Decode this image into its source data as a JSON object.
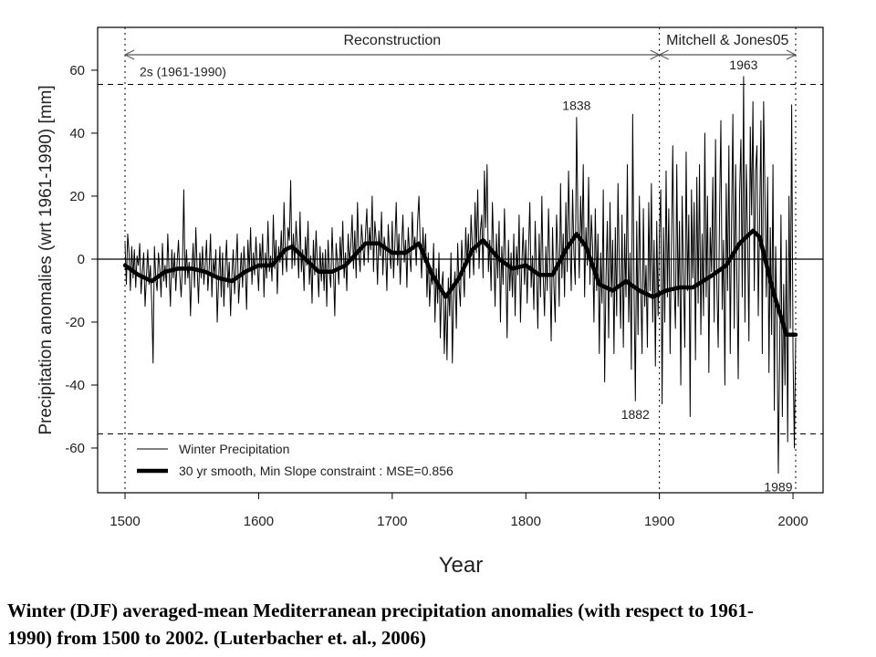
{
  "chart_data": {
    "type": "line",
    "xlabel": "Year",
    "ylabel": "Precipitation anomalies (wrt 1961-1990) [mm]",
    "xlim": [
      1479.5,
      2022.5
    ],
    "ylim": [
      -74.2,
      73.6
    ],
    "xticks": [
      1500,
      1600,
      1700,
      1800,
      1900,
      2000
    ],
    "yticks": [
      -60,
      -40,
      -20,
      0,
      20,
      40,
      60
    ],
    "zero_line": 0,
    "thresholds": {
      "label": "2s (1961-1990)",
      "values": [
        55.5,
        -55.5
      ]
    },
    "periods": [
      {
        "label": "Reconstruction",
        "start": 1500,
        "end": 1900
      },
      {
        "label": "Mitchell & Jones05",
        "start": 1900,
        "end": 2002
      }
    ],
    "annotations": [
      {
        "text": "1838",
        "x": 1838,
        "y": 45
      },
      {
        "text": "1963",
        "x": 1963,
        "y": 58
      },
      {
        "text": "1882",
        "x": 1882,
        "y": -45
      },
      {
        "text": "1989",
        "x": 1989,
        "y": -68
      }
    ],
    "series": [
      {
        "name": "Winter Precipitation",
        "color": "#000000",
        "width": 1,
        "x": [
          1500,
          1501,
          1502,
          1503,
          1504,
          1505,
          1506,
          1507,
          1508,
          1509,
          1510,
          1511,
          1512,
          1513,
          1514,
          1515,
          1516,
          1517,
          1518,
          1519,
          1520,
          1521,
          1522,
          1523,
          1524,
          1525,
          1526,
          1527,
          1528,
          1529,
          1530,
          1531,
          1532,
          1533,
          1534,
          1535,
          1536,
          1537,
          1538,
          1539,
          1540,
          1541,
          1542,
          1543,
          1544,
          1545,
          1546,
          1547,
          1548,
          1549,
          1550,
          1551,
          1552,
          1553,
          1554,
          1555,
          1556,
          1557,
          1558,
          1559,
          1560,
          1561,
          1562,
          1563,
          1564,
          1565,
          1566,
          1567,
          1568,
          1569,
          1570,
          1571,
          1572,
          1573,
          1574,
          1575,
          1576,
          1577,
          1578,
          1579,
          1580,
          1581,
          1582,
          1583,
          1584,
          1585,
          1586,
          1587,
          1588,
          1589,
          1590,
          1591,
          1592,
          1593,
          1594,
          1595,
          1596,
          1597,
          1598,
          1599,
          1600,
          1601,
          1602,
          1603,
          1604,
          1605,
          1606,
          1607,
          1608,
          1609,
          1610,
          1611,
          1612,
          1613,
          1614,
          1615,
          1616,
          1617,
          1618,
          1619,
          1620,
          1621,
          1622,
          1623,
          1624,
          1625,
          1626,
          1627,
          1628,
          1629,
          1630,
          1631,
          1632,
          1633,
          1634,
          1635,
          1636,
          1637,
          1638,
          1639,
          1640,
          1641,
          1642,
          1643,
          1644,
          1645,
          1646,
          1647,
          1648,
          1649,
          1650,
          1651,
          1652,
          1653,
          1654,
          1655,
          1656,
          1657,
          1658,
          1659,
          1660,
          1661,
          1662,
          1663,
          1664,
          1665,
          1666,
          1667,
          1668,
          1669,
          1670,
          1671,
          1672,
          1673,
          1674,
          1675,
          1676,
          1677,
          1678,
          1679,
          1680,
          1681,
          1682,
          1683,
          1684,
          1685,
          1686,
          1687,
          1688,
          1689,
          1690,
          1691,
          1692,
          1693,
          1694,
          1695,
          1696,
          1697,
          1698,
          1699,
          1700,
          1701,
          1702,
          1703,
          1704,
          1705,
          1706,
          1707,
          1708,
          1709,
          1710,
          1711,
          1712,
          1713,
          1714,
          1715,
          1716,
          1717,
          1718,
          1719,
          1720,
          1721,
          1722,
          1723,
          1724,
          1725,
          1726,
          1727,
          1728,
          1729,
          1730,
          1731,
          1732,
          1733,
          1734,
          1735,
          1736,
          1737,
          1738,
          1739,
          1740,
          1741,
          1742,
          1743,
          1744,
          1745,
          1746,
          1747,
          1748,
          1749,
          1750,
          1751,
          1752,
          1753,
          1754,
          1755,
          1756,
          1757,
          1758,
          1759,
          1760,
          1761,
          1762,
          1763,
          1764,
          1765,
          1766,
          1767,
          1768,
          1769,
          1770,
          1771,
          1772,
          1773,
          1774,
          1775,
          1776,
          1777,
          1778,
          1779,
          1780,
          1781,
          1782,
          1783,
          1784,
          1785,
          1786,
          1787,
          1788,
          1789,
          1790,
          1791,
          1792,
          1793,
          1794,
          1795,
          1796,
          1797,
          1798,
          1799,
          1800,
          1801,
          1802,
          1803,
          1804,
          1805,
          1806,
          1807,
          1808,
          1809,
          1810,
          1811,
          1812,
          1813,
          1814,
          1815,
          1816,
          1817,
          1818,
          1819,
          1820,
          1821,
          1822,
          1823,
          1824,
          1825,
          1826,
          1827,
          1828,
          1829,
          1830,
          1831,
          1832,
          1833,
          1834,
          1835,
          1836,
          1837,
          1838,
          1839,
          1840,
          1841,
          1842,
          1843,
          1844,
          1845,
          1846,
          1847,
          1848,
          1849,
          1850,
          1851,
          1852,
          1853,
          1854,
          1855,
          1856,
          1857,
          1858,
          1859,
          1860,
          1861,
          1862,
          1863,
          1864,
          1865,
          1866,
          1867,
          1868,
          1869,
          1870,
          1871,
          1872,
          1873,
          1874,
          1875,
          1876,
          1877,
          1878,
          1879,
          1880,
          1881,
          1882,
          1883,
          1884,
          1885,
          1886,
          1887,
          1888,
          1889,
          1890,
          1891,
          1892,
          1893,
          1894,
          1895,
          1896,
          1897,
          1898,
          1899,
          1900,
          1901,
          1902,
          1903,
          1904,
          1905,
          1906,
          1907,
          1908,
          1909,
          1910,
          1911,
          1912,
          1913,
          1914,
          1915,
          1916,
          1917,
          1918,
          1919,
          1920,
          1921,
          1922,
          1923,
          1924,
          1925,
          1926,
          1927,
          1928,
          1929,
          1930,
          1931,
          1932,
          1933,
          1934,
          1935,
          1936,
          1937,
          1938,
          1939,
          1940,
          1941,
          1942,
          1943,
          1944,
          1945,
          1946,
          1947,
          1948,
          1949,
          1950,
          1951,
          1952,
          1953,
          1954,
          1955,
          1956,
          1957,
          1958,
          1959,
          1960,
          1961,
          1962,
          1963,
          1964,
          1965,
          1966,
          1967,
          1968,
          1969,
          1970,
          1971,
          1972,
          1973,
          1974,
          1975,
          1976,
          1977,
          1978,
          1979,
          1980,
          1981,
          1982,
          1983,
          1984,
          1985,
          1986,
          1987,
          1988,
          1989,
          1990,
          1991,
          1992,
          1993,
          1994,
          1995,
          1996,
          1997,
          1998,
          1999,
          2000,
          2001,
          2002
        ],
        "values": [
          5,
          -8,
          8,
          2,
          -10,
          4,
          -6,
          3,
          -9,
          1,
          -2,
          5,
          -11,
          -4,
          2,
          -15,
          -6,
          3,
          -8,
          -2,
          -14,
          -33,
          4,
          -6,
          -10,
          2,
          -3,
          -12,
          5,
          -7,
          -2,
          -9,
          8,
          -4,
          -15,
          3,
          -6,
          2,
          -10,
          -1,
          6,
          -5,
          -12,
          -2,
          22,
          -8,
          3,
          -6,
          -1,
          -18,
          -4,
          5,
          -9,
          10,
          -3,
          -14,
          2,
          -6,
          4,
          -8,
          -2,
          6,
          -10,
          -3,
          8,
          -12,
          0,
          -5,
          3,
          -20,
          -7,
          4,
          -12,
          2,
          -15,
          -3,
          6,
          -9,
          -1,
          -18,
          -5,
          3,
          -11,
          -2,
          8,
          -14,
          -6,
          2,
          -9,
          4,
          -3,
          -16,
          6,
          -4,
          10,
          -8,
          2,
          -5,
          7,
          -2,
          -10,
          5,
          -3,
          8,
          -12,
          2,
          -6,
          12,
          -4,
          1,
          -7,
          14,
          -3,
          6,
          -11,
          4,
          -1,
          9,
          -5,
          18,
          2,
          -4,
          10,
          6,
          25,
          -3,
          8,
          -2,
          12,
          4,
          -6,
          15,
          -4,
          3,
          -10,
          7,
          -2,
          12,
          -8,
          1,
          -14,
          6,
          -5,
          9,
          -2,
          -12,
          4,
          -7,
          2,
          -10,
          3,
          -15,
          6,
          -4,
          -9,
          10,
          -3,
          -18,
          5,
          -1,
          -8,
          7,
          -3,
          12,
          -6,
          2,
          -10,
          8,
          -1,
          4,
          14,
          -3,
          9,
          -6,
          18,
          2,
          -4,
          11,
          5,
          -2,
          8,
          16,
          -1,
          10,
          3,
          20,
          -4,
          12,
          6,
          -8,
          9,
          1,
          15,
          -5,
          7,
          3,
          -10,
          11,
          2,
          -3,
          12,
          -6,
          5,
          18,
          -2,
          8,
          -8,
          4,
          14,
          -1,
          6,
          -9,
          10,
          2,
          -4,
          15,
          3,
          7,
          -2,
          12,
          20,
          4,
          -6,
          10,
          -1,
          8,
          -12,
          2,
          -15,
          -5,
          -8,
          5,
          -20,
          -3,
          -14,
          2,
          -25,
          -9,
          -4,
          -30,
          -12,
          -32,
          -6,
          -18,
          2,
          -33,
          -10,
          -4,
          -22,
          5,
          -8,
          -15,
          6,
          -3,
          -12,
          10,
          -2,
          8,
          -6,
          14,
          4,
          -5,
          18,
          2,
          22,
          -3,
          9,
          14,
          -6,
          28,
          10,
          30,
          -4,
          6,
          -10,
          18,
          2,
          -15,
          8,
          -6,
          12,
          -20,
          4,
          -8,
          16,
          -2,
          -25,
          6,
          -10,
          2,
          -12,
          8,
          -18,
          4,
          -5,
          14,
          -20,
          -2,
          10,
          -8,
          6,
          -14,
          3,
          18,
          -9,
          1,
          -16,
          12,
          -4,
          -22,
          8,
          -12,
          20,
          -5,
          -18,
          4,
          -10,
          16,
          -2,
          -26,
          10,
          -8,
          -20,
          14,
          2,
          -15,
          24,
          -6,
          8,
          -12,
          18,
          -4,
          28,
          6,
          -10,
          22,
          2,
          -8,
          45,
          12,
          -6,
          20,
          4,
          30,
          -12,
          10,
          -2,
          26,
          -8,
          14,
          4,
          -20,
          16,
          -10,
          8,
          -30,
          2,
          -14,
          22,
          -39,
          -6,
          12,
          -25,
          18,
          -12,
          6,
          -30,
          10,
          -18,
          24,
          -4,
          -22,
          14,
          -28,
          8,
          -12,
          30,
          -20,
          2,
          -35,
          46,
          -10,
          -45,
          12,
          -24,
          20,
          -8,
          -30,
          16,
          -15,
          -2,
          -28,
          18,
          -10,
          24,
          -20,
          6,
          -34,
          12,
          -18,
          8,
          22,
          -46,
          10,
          -20,
          28,
          -12,
          16,
          -30,
          4,
          36,
          -8,
          -22,
          30,
          -15,
          12,
          -40,
          20,
          -5,
          -28,
          34,
          -10,
          14,
          -50,
          22,
          -6,
          18,
          -32,
          26,
          -14,
          30,
          -24,
          8,
          -18,
          40,
          -12,
          20,
          -36,
          10,
          -4,
          26,
          -20,
          38,
          -8,
          -28,
          14,
          44,
          -16,
          6,
          -40,
          24,
          -10,
          36,
          -30,
          12,
          46,
          -22,
          30,
          -6,
          -38,
          20,
          38,
          -12,
          58,
          -20,
          30,
          8,
          -26,
          42,
          14,
          50,
          -10,
          28,
          36,
          -18,
          12,
          44,
          -30,
          50,
          20,
          -12,
          26,
          -36,
          10,
          -24,
          30,
          -48,
          4,
          -20,
          -68,
          -30,
          14,
          -50,
          -8,
          -40,
          6,
          -58,
          20,
          -22,
          49,
          -30,
          -60,
          -25
        ]
      },
      {
        "name": "30 yr smooth, Min Slope constraint : MSE=0.856",
        "color": "#000000",
        "width": 4.5,
        "x": [
          1500,
          1510,
          1520,
          1530,
          1540,
          1550,
          1560,
          1570,
          1580,
          1590,
          1600,
          1610,
          1620,
          1625,
          1635,
          1645,
          1655,
          1665,
          1680,
          1690,
          1700,
          1710,
          1720,
          1730,
          1740,
          1750,
          1760,
          1768,
          1780,
          1790,
          1800,
          1810,
          1820,
          1830,
          1838,
          1845,
          1855,
          1865,
          1875,
          1885,
          1895,
          1905,
          1915,
          1925,
          1940,
          1950,
          1960,
          1970,
          1975,
          1985,
          1995,
          2002
        ],
        "values": [
          -2,
          -5,
          -7,
          -4,
          -3,
          -3,
          -4,
          -6,
          -7,
          -4,
          -2,
          -2,
          3,
          4,
          0,
          -4,
          -4,
          -2,
          5,
          5,
          2,
          2,
          5,
          -5,
          -12,
          -6,
          3,
          6,
          0,
          -3,
          -2,
          -5,
          -5,
          3,
          8,
          4,
          -8,
          -10,
          -7,
          -10,
          -12,
          -10,
          -9,
          -9,
          -5,
          -2,
          5,
          9,
          7,
          -10,
          -24,
          -24
        ]
      }
    ],
    "caption": [
      "Winter (DJF) averaged-mean Mediterranean precipitation anomalies (with respect to 1961-",
      "1990) from 1500 to 2002. (Luterbacher et. al., 2006)"
    ]
  }
}
